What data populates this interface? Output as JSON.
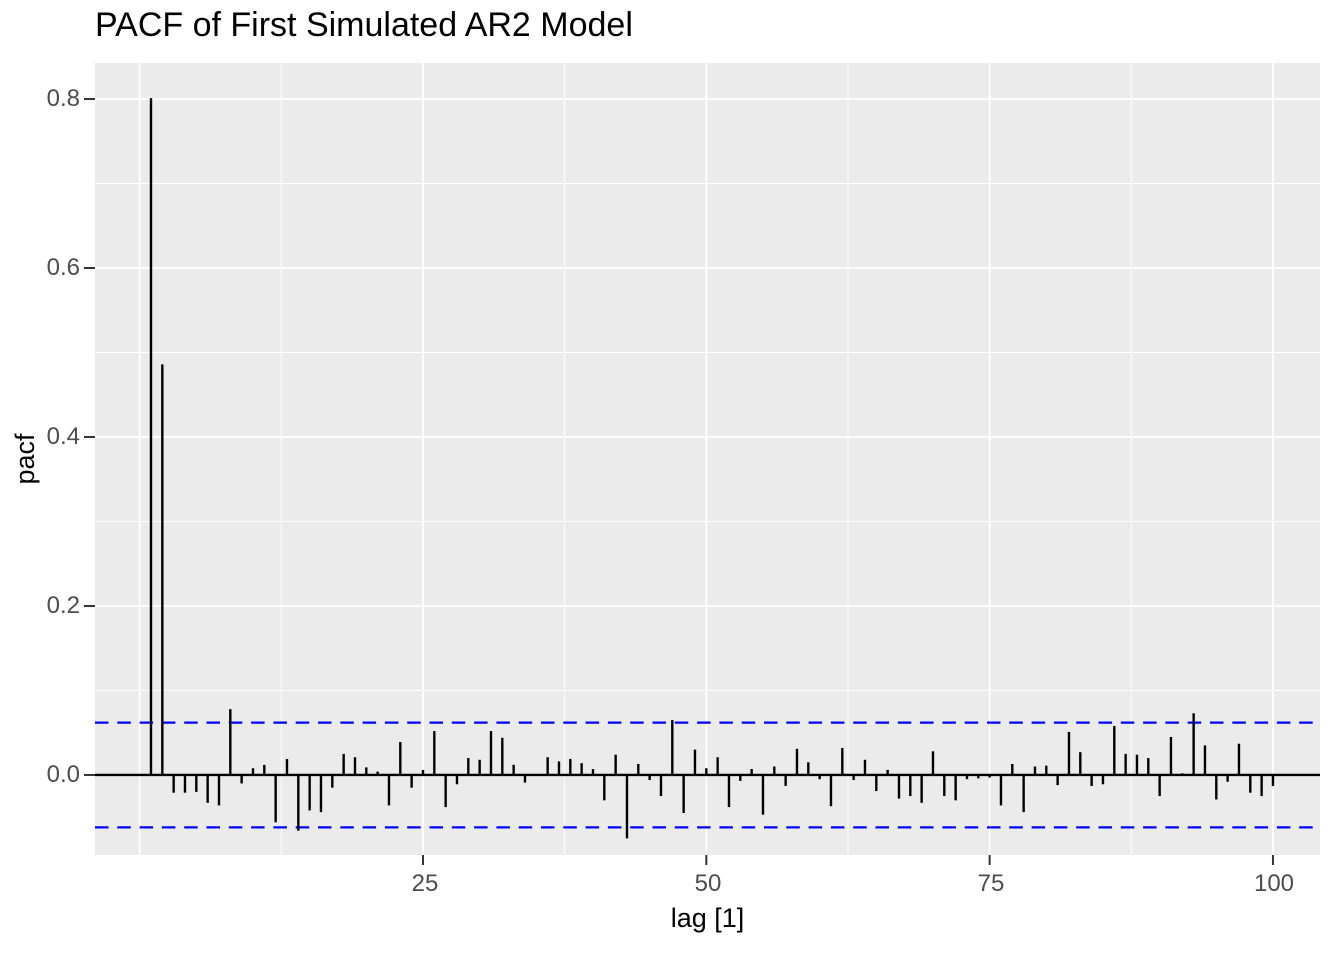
{
  "figure": {
    "title": "PACF of First Simulated AR2 Model",
    "x_axis_label": "lag [1]",
    "y_axis_label": "pacf"
  },
  "chart_data": {
    "type": "bar",
    "subtype": "pacf-lollipop",
    "title": "PACF of First Simulated AR2 Model",
    "xlabel": "lag [1]",
    "ylabel": "pacf",
    "lag_start": 1,
    "values": [
      0.801,
      0.486,
      -0.021,
      -0.021,
      -0.02,
      -0.033,
      -0.036,
      0.078,
      -0.01,
      0.008,
      0.012,
      -0.056,
      0.019,
      -0.066,
      -0.042,
      -0.044,
      -0.015,
      0.025,
      0.021,
      0.009,
      0.004,
      -0.036,
      0.039,
      -0.015,
      0.006,
      0.052,
      -0.038,
      -0.011,
      0.02,
      0.018,
      0.052,
      0.044,
      0.012,
      -0.009,
      -0.001,
      0.021,
      0.016,
      0.019,
      0.014,
      0.007,
      -0.03,
      0.024,
      -0.075,
      0.013,
      -0.006,
      -0.025,
      0.065,
      -0.045,
      0.03,
      0.008,
      0.021,
      -0.038,
      -0.007,
      0.007,
      -0.047,
      0.01,
      -0.013,
      0.031,
      0.015,
      -0.005,
      -0.037,
      0.032,
      -0.006,
      0.018,
      -0.019,
      0.006,
      -0.028,
      -0.025,
      -0.033,
      0.028,
      -0.025,
      -0.03,
      -0.005,
      -0.004,
      -0.003,
      -0.036,
      0.013,
      -0.044,
      0.01,
      0.011,
      -0.012,
      0.051,
      0.027,
      -0.013,
      -0.011,
      0.058,
      0.025,
      0.024,
      0.02,
      -0.025,
      0.045,
      0.002,
      0.073,
      0.035,
      -0.029,
      -0.008,
      0.037,
      -0.021,
      -0.025,
      -0.013
    ],
    "confidence_upper": 0.062,
    "confidence_lower": -0.062,
    "x_ticks": [
      "25",
      "50",
      "75",
      "100"
    ],
    "x_tick_values": [
      25,
      50,
      75,
      100
    ],
    "y_ticks": [
      "0.8",
      "0.6",
      "0.4",
      "0.2",
      "0.0"
    ],
    "y_tick_values": [
      0.8,
      0.6,
      0.4,
      0.2,
      0.0
    ],
    "x_major_gridlines": [
      0,
      25,
      50,
      75,
      100
    ],
    "x_minor_gridlines": [
      12.5,
      37.5,
      62.5,
      87.5
    ],
    "y_major_gridlines": [
      0.0,
      0.2,
      0.4,
      0.6,
      0.8
    ],
    "y_minor_gridlines": [
      0.1,
      0.3,
      0.5,
      0.7
    ],
    "xlim": [
      -3.94,
      104.15
    ],
    "ylim": [
      -0.0947,
      0.8426
    ],
    "legend": "none",
    "grid": "on",
    "colors": {
      "bar": "#000000",
      "confidence_line": "#0000ff",
      "zero_line": "#000000",
      "panel_background": "#ebebeb",
      "gridline": "#ffffff",
      "tick_text": "#4d4d4d",
      "tick_mark": "#333333",
      "title_text": "#000000"
    }
  }
}
